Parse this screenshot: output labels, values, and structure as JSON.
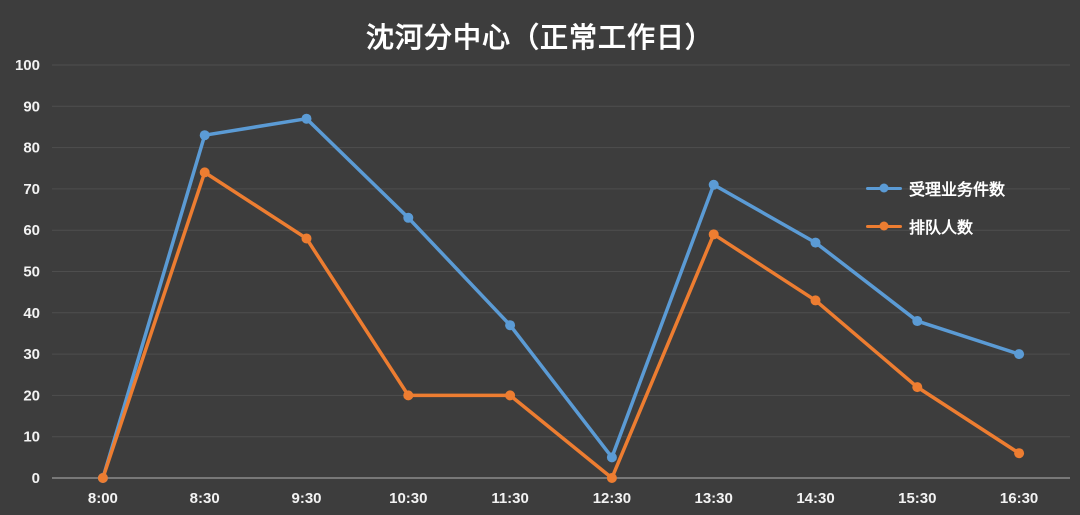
{
  "chart_data": {
    "type": "line",
    "title": "沈河分中心（正常工作日）",
    "categories": [
      "8:00",
      "8:30",
      "9:30",
      "10:30",
      "11:30",
      "12:30",
      "13:30",
      "14:30",
      "15:30",
      "16:30"
    ],
    "series": [
      {
        "name": "受理业务件数",
        "color": "#5B9BD5",
        "values": [
          0,
          83,
          87,
          63,
          37,
          5,
          71,
          57,
          38,
          30
        ]
      },
      {
        "name": "排队人数",
        "color": "#ED7D31",
        "values": [
          0,
          74,
          58,
          20,
          20,
          0,
          59,
          43,
          22,
          6
        ]
      }
    ],
    "ylim": [
      0,
      100
    ],
    "ytick_step": 10,
    "grid": true,
    "legend_position": "right",
    "colors": {
      "background": "#3d3d3d",
      "gridline": "#4e4e4e",
      "axis": "#8c8c8c",
      "text": "#f2f2f2",
      "title": "#ffffff"
    }
  }
}
